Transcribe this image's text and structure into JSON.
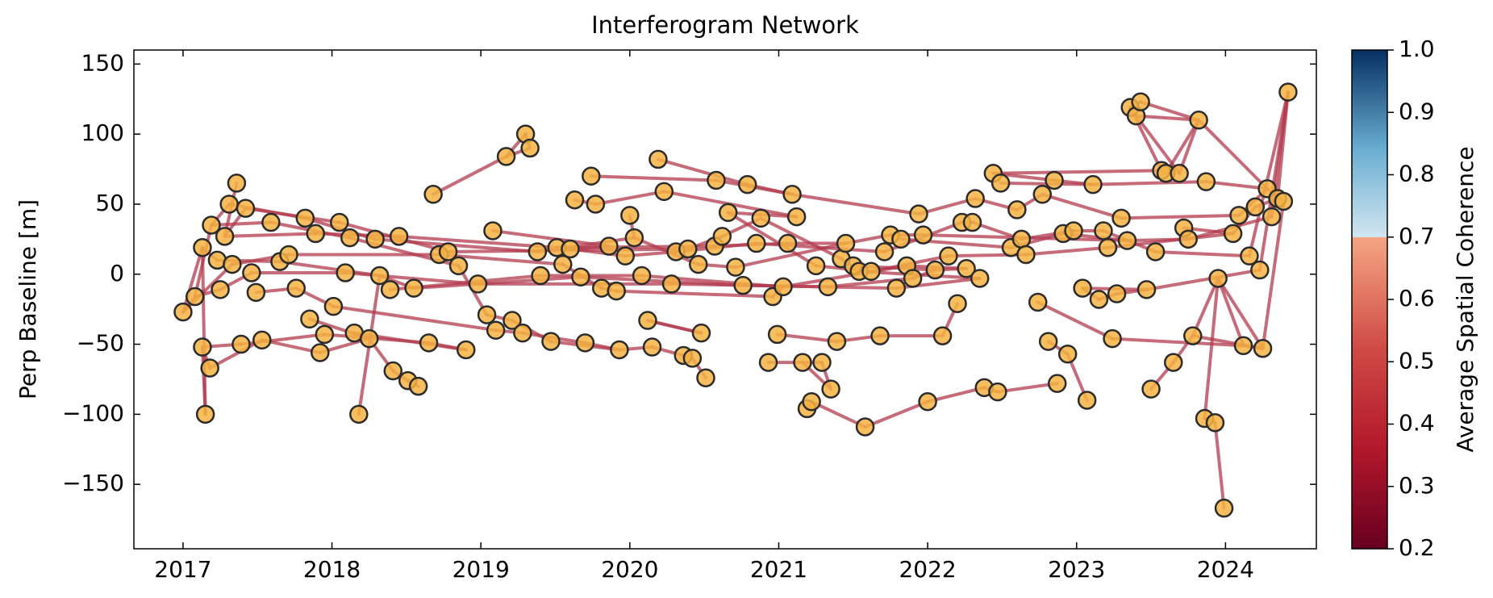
{
  "chart_data": {
    "type": "network",
    "title": "Interferogram Network",
    "ylabel": "Perp Baseline [m]",
    "colorbar_label": "Average Spatial Coherence",
    "xlim": [
      2016.67,
      2024.61
    ],
    "ylim": [
      -196,
      160
    ],
    "xticks": [
      2017,
      2018,
      2019,
      2020,
      2021,
      2022,
      2023,
      2024
    ],
    "yticks": [
      {
        "value": -150,
        "label": "−150"
      },
      {
        "value": -100,
        "label": "−100"
      },
      {
        "value": -50,
        "label": "−50"
      },
      0,
      50,
      100,
      150
    ],
    "clim": [
      0.2,
      1.0
    ],
    "cticks": [
      0.2,
      0.3,
      0.4,
      0.5,
      0.6,
      0.7,
      0.8,
      0.9,
      {
        "value": 1,
        "label": "1.0"
      }
    ],
    "node_color": "#f5b342",
    "edge_color": "#b23a4e",
    "x": [
      2017.0,
      2017.08,
      2017.13,
      2017.15,
      2017.13,
      2017.18,
      2017.19,
      2017.23,
      2017.25,
      2017.28,
      2017.31,
      2017.33,
      2017.36,
      2017.39,
      2017.42,
      2017.46,
      2017.49,
      2017.53,
      2017.59,
      2017.65,
      2017.71,
      2017.76,
      2017.82,
      2017.85,
      2017.89,
      2017.92,
      2017.95,
      2018.01,
      2018.05,
      2018.09,
      2018.12,
      2018.15,
      2018.18,
      2018.25,
      2018.29,
      2018.32,
      2018.39,
      2018.41,
      2018.45,
      2018.51,
      2018.58,
      2018.55,
      2018.65,
      2018.68,
      2018.72,
      2018.78,
      2018.85,
      2018.9,
      2018.98,
      2019.04,
      2019.08,
      2019.1,
      2019.17,
      2019.21,
      2019.28,
      2019.3,
      2019.33,
      2019.38,
      2019.4,
      2019.47,
      2019.51,
      2019.55,
      2019.6,
      2019.63,
      2019.67,
      2019.7,
      2019.74,
      2019.77,
      2019.81,
      2019.86,
      2019.91,
      2019.93,
      2019.97,
      2020.0,
      2020.03,
      2020.08,
      2020.12,
      2020.15,
      2020.19,
      2020.23,
      2020.28,
      2020.31,
      2020.36,
      2020.39,
      2020.42,
      2020.46,
      2020.48,
      2020.51,
      2020.57,
      2020.58,
      2020.62,
      2020.66,
      2020.71,
      2020.76,
      2020.79,
      2020.85,
      2020.88,
      2020.93,
      2020.96,
      2020.99,
      2021.03,
      2021.06,
      2021.09,
      2021.12,
      2021.16,
      2021.19,
      2021.22,
      2021.25,
      2021.29,
      2021.33,
      2021.35,
      2021.39,
      2021.42,
      2021.45,
      2021.5,
      2021.54,
      2021.58,
      2021.62,
      2021.68,
      2021.71,
      2021.75,
      2021.79,
      2021.82,
      2021.86,
      2021.9,
      2021.94,
      2021.97,
      2022.0,
      2022.05,
      2022.1,
      2022.14,
      2022.2,
      2022.23,
      2022.26,
      2022.3,
      2022.32,
      2022.35,
      2022.38,
      2022.44,
      2022.47,
      2022.49,
      2022.56,
      2022.6,
      2022.63,
      2022.66,
      2022.74,
      2022.77,
      2022.81,
      2022.85,
      2022.87,
      2022.91,
      2022.94,
      2022.98,
      2023.04,
      2023.07,
      2023.11,
      2023.15,
      2023.18,
      2023.21,
      2023.24,
      2023.27,
      2023.3,
      2023.34,
      2023.36,
      2023.4,
      2023.43,
      2023.47,
      2023.5,
      2023.53,
      2023.57,
      2023.6,
      2023.65,
      2023.69,
      2023.72,
      2023.75,
      2023.78,
      2023.82,
      2023.86,
      2023.87,
      2023.93,
      2023.95,
      2023.99,
      2024.05,
      2024.09,
      2024.12,
      2024.16,
      2024.2,
      2024.23,
      2024.25,
      2024.28,
      2024.31,
      2024.35,
      2024.39,
      2024.42
    ],
    "y": [
      -27,
      -16,
      19,
      -100,
      -52,
      -67,
      35,
      10,
      -11,
      27,
      50,
      7,
      65,
      -50,
      47,
      1,
      -13,
      -47,
      37,
      9,
      14,
      -10,
      40,
      -32,
      29,
      -56,
      -43,
      -23,
      37,
      1,
      26,
      -42,
      -100,
      -46,
      25,
      -1,
      -11,
      -69,
      27,
      -76,
      -80,
      -10,
      -49,
      57,
      14,
      16,
      6,
      -54,
      -7,
      -29,
      31,
      -40,
      84,
      -33,
      -42,
      100,
      90,
      16,
      -1,
      -48,
      19,
      7,
      18,
      53,
      -2,
      -49,
      70,
      50,
      -10,
      20,
      -12,
      -54,
      13,
      42,
      26,
      -1,
      -33,
      -52,
      82,
      59,
      -7,
      16,
      -58,
      18,
      -60,
      7,
      -42,
      -74,
      20,
      67,
      27,
      44,
      5,
      -8,
      64,
      22,
      40,
      -63,
      -16,
      -43,
      -9,
      22,
      57,
      41,
      -63,
      -96,
      -91,
      6,
      -63,
      -9,
      -82,
      -48,
      11,
      22,
      6,
      2,
      -109,
      2,
      -44,
      16,
      28,
      -10,
      25,
      6,
      -3,
      43,
      28,
      -91,
      3,
      -44,
      13,
      -21,
      37,
      4,
      37,
      54,
      -3,
      -81,
      72,
      -84,
      65,
      19,
      46,
      25,
      14,
      -20,
      57,
      -48,
      67,
      -78,
      29,
      -57,
      31,
      -10,
      -90,
      64,
      -18,
      31,
      19,
      -46,
      -14,
      40,
      24,
      119,
      113,
      123,
      -11,
      -82,
      16,
      74,
      72,
      -63,
      72,
      33,
      25,
      -44,
      110,
      -103,
      66,
      -106,
      -3,
      -167,
      29,
      42,
      -51,
      13,
      48,
      3,
      -53,
      61,
      41,
      54,
      52,
      130
    ],
    "edges": [
      [
        0,
        1
      ],
      [
        0,
        2
      ],
      [
        0,
        11
      ],
      [
        1,
        8
      ],
      [
        1,
        6
      ],
      [
        2,
        3
      ],
      [
        2,
        7
      ],
      [
        4,
        3
      ],
      [
        4,
        13
      ],
      [
        5,
        4
      ],
      [
        5,
        17
      ],
      [
        6,
        10
      ],
      [
        6,
        18
      ],
      [
        7,
        19
      ],
      [
        8,
        15
      ],
      [
        9,
        14
      ],
      [
        9,
        24
      ],
      [
        10,
        22
      ],
      [
        11,
        20
      ],
      [
        12,
        9
      ],
      [
        13,
        26
      ],
      [
        14,
        28
      ],
      [
        15,
        29
      ],
      [
        16,
        21
      ],
      [
        17,
        25
      ],
      [
        18,
        30
      ],
      [
        19,
        35
      ],
      [
        20,
        44
      ],
      [
        21,
        27
      ],
      [
        22,
        34
      ],
      [
        23,
        33
      ],
      [
        24,
        38
      ],
      [
        25,
        33
      ],
      [
        26,
        42
      ],
      [
        27,
        51
      ],
      [
        28,
        45
      ],
      [
        29,
        48
      ],
      [
        30,
        46
      ],
      [
        31,
        47
      ],
      [
        32,
        35
      ],
      [
        33,
        37
      ],
      [
        34,
        57
      ],
      [
        35,
        41
      ],
      [
        36,
        58
      ],
      [
        37,
        39
      ],
      [
        39,
        40
      ],
      [
        38,
        60
      ],
      [
        41,
        64
      ],
      [
        42,
        47
      ],
      [
        43,
        52
      ],
      [
        44,
        61
      ],
      [
        45,
        83
      ],
      [
        46,
        49
      ],
      [
        48,
        80
      ],
      [
        49,
        53
      ],
      [
        50,
        69
      ],
      [
        51,
        54
      ],
      [
        52,
        56
      ],
      [
        52,
        55
      ],
      [
        53,
        59
      ],
      [
        54,
        65
      ],
      [
        55,
        56
      ],
      [
        57,
        74
      ],
      [
        58,
        75
      ],
      [
        59,
        71
      ],
      [
        60,
        88
      ],
      [
        61,
        68
      ],
      [
        62,
        72
      ],
      [
        63,
        67
      ],
      [
        64,
        93
      ],
      [
        65,
        71
      ],
      [
        66,
        89
      ],
      [
        67,
        79
      ],
      [
        68,
        70
      ],
      [
        69,
        62
      ],
      [
        70,
        98
      ],
      [
        71,
        77
      ],
      [
        72,
        81
      ],
      [
        73,
        74
      ],
      [
        74,
        85
      ],
      [
        75,
        100
      ],
      [
        76,
        86
      ],
      [
        77,
        82
      ],
      [
        78,
        94
      ],
      [
        79,
        103
      ],
      [
        80,
        109
      ],
      [
        81,
        95
      ],
      [
        82,
        84
      ],
      [
        83,
        90
      ],
      [
        84,
        87
      ],
      [
        85,
        92
      ],
      [
        86,
        76
      ],
      [
        88,
        101
      ],
      [
        89,
        102
      ],
      [
        90,
        96
      ],
      [
        91,
        107
      ],
      [
        92,
        113
      ],
      [
        93,
        121
      ],
      [
        94,
        102
      ],
      [
        95,
        119
      ],
      [
        96,
        112
      ],
      [
        97,
        104
      ],
      [
        98,
        100
      ],
      [
        99,
        111
      ],
      [
        100,
        123
      ],
      [
        101,
        113
      ],
      [
        102,
        125
      ],
      [
        103,
        91
      ],
      [
        104,
        108
      ],
      [
        105,
        106
      ],
      [
        106,
        116
      ],
      [
        107,
        117
      ],
      [
        108,
        110
      ],
      [
        109,
        124
      ],
      [
        110,
        104
      ],
      [
        111,
        118
      ],
      [
        112,
        115
      ],
      [
        113,
        120
      ],
      [
        114,
        128
      ],
      [
        115,
        136
      ],
      [
        116,
        127
      ],
      [
        117,
        130
      ],
      [
        118,
        129
      ],
      [
        119,
        132
      ],
      [
        120,
        126
      ],
      [
        121,
        136
      ],
      [
        122,
        141
      ],
      [
        123,
        133
      ],
      [
        124,
        128
      ],
      [
        125,
        135
      ],
      [
        126,
        162
      ],
      [
        127,
        137
      ],
      [
        128,
        133
      ],
      [
        129,
        131
      ],
      [
        130,
        144
      ],
      [
        132,
        134
      ],
      [
        134,
        143
      ],
      [
        135,
        142
      ],
      [
        137,
        139
      ],
      [
        138,
        148
      ],
      [
        138,
        169
      ],
      [
        139,
        149
      ],
      [
        140,
        155
      ],
      [
        141,
        150
      ],
      [
        142,
        146
      ],
      [
        143,
        152
      ],
      [
        144,
        158
      ],
      [
        145,
        159
      ],
      [
        146,
        161
      ],
      [
        147,
        151
      ],
      [
        148,
        155
      ],
      [
        150,
        162
      ],
      [
        151,
        154
      ],
      [
        152,
        157
      ],
      [
        153,
        166
      ],
      [
        153,
        156
      ],
      [
        155,
        178
      ],
      [
        156,
        160
      ],
      [
        157,
        168
      ],
      [
        158,
        182
      ],
      [
        159,
        184
      ],
      [
        160,
        166
      ],
      [
        161,
        183
      ],
      [
        162,
        174
      ],
      [
        163,
        165
      ],
      [
        164,
        176
      ],
      [
        165,
        176
      ],
      [
        163,
        169
      ],
      [
        164,
        172
      ],
      [
        169,
        170
      ],
      [
        170,
        176
      ],
      [
        172,
        176
      ],
      [
        166,
        187
      ],
      [
        167,
        171
      ],
      [
        168,
        185
      ],
      [
        171,
        175
      ],
      [
        173,
        182
      ],
      [
        174,
        190
      ],
      [
        175,
        188
      ],
      [
        177,
        180
      ],
      [
        179,
        181
      ],
      [
        177,
        179
      ],
      [
        178,
        189
      ],
      [
        180,
        184
      ],
      [
        182,
        186
      ],
      [
        183,
        189
      ],
      [
        185,
        193
      ],
      [
        186,
        191
      ],
      [
        187,
        193
      ],
      [
        188,
        192
      ],
      [
        189,
        192
      ],
      [
        190,
        193
      ],
      [
        191,
        193
      ],
      [
        176,
        189
      ],
      [
        180,
        188
      ],
      [
        184,
        188
      ],
      [
        175,
        180
      ]
    ]
  }
}
